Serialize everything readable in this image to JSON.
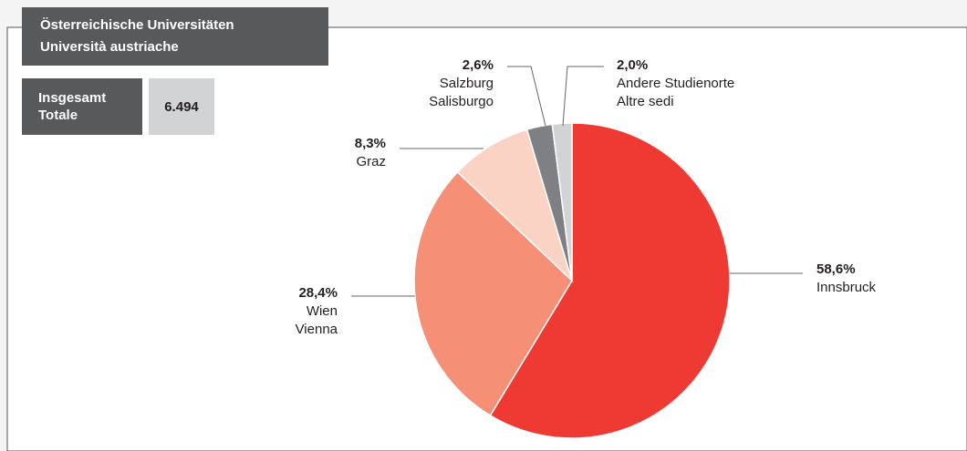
{
  "chart_data": {
    "type": "pie",
    "title": [
      "Österreichische Universitäten",
      "Università austriache"
    ],
    "total": {
      "label": [
        "Insgesamt",
        "Totale"
      ],
      "value": "6.494"
    },
    "categories": [
      [
        "Innsbruck"
      ],
      [
        "Wien",
        "Vienna"
      ],
      [
        "Graz"
      ],
      [
        "Salzburg",
        "Salisburgo"
      ],
      [
        "Andere Studienorte",
        "Altre sedi"
      ]
    ],
    "values": [
      58.6,
      28.4,
      8.3,
      2.6,
      2.0
    ],
    "value_labels": [
      "58,6%",
      "28,4%",
      "8,3%",
      "2,6%",
      "2,0%"
    ],
    "colors": [
      "#ee3a32",
      "#f59076",
      "#fbd3c5",
      "#7f8083",
      "#d2d3d5"
    ]
  }
}
